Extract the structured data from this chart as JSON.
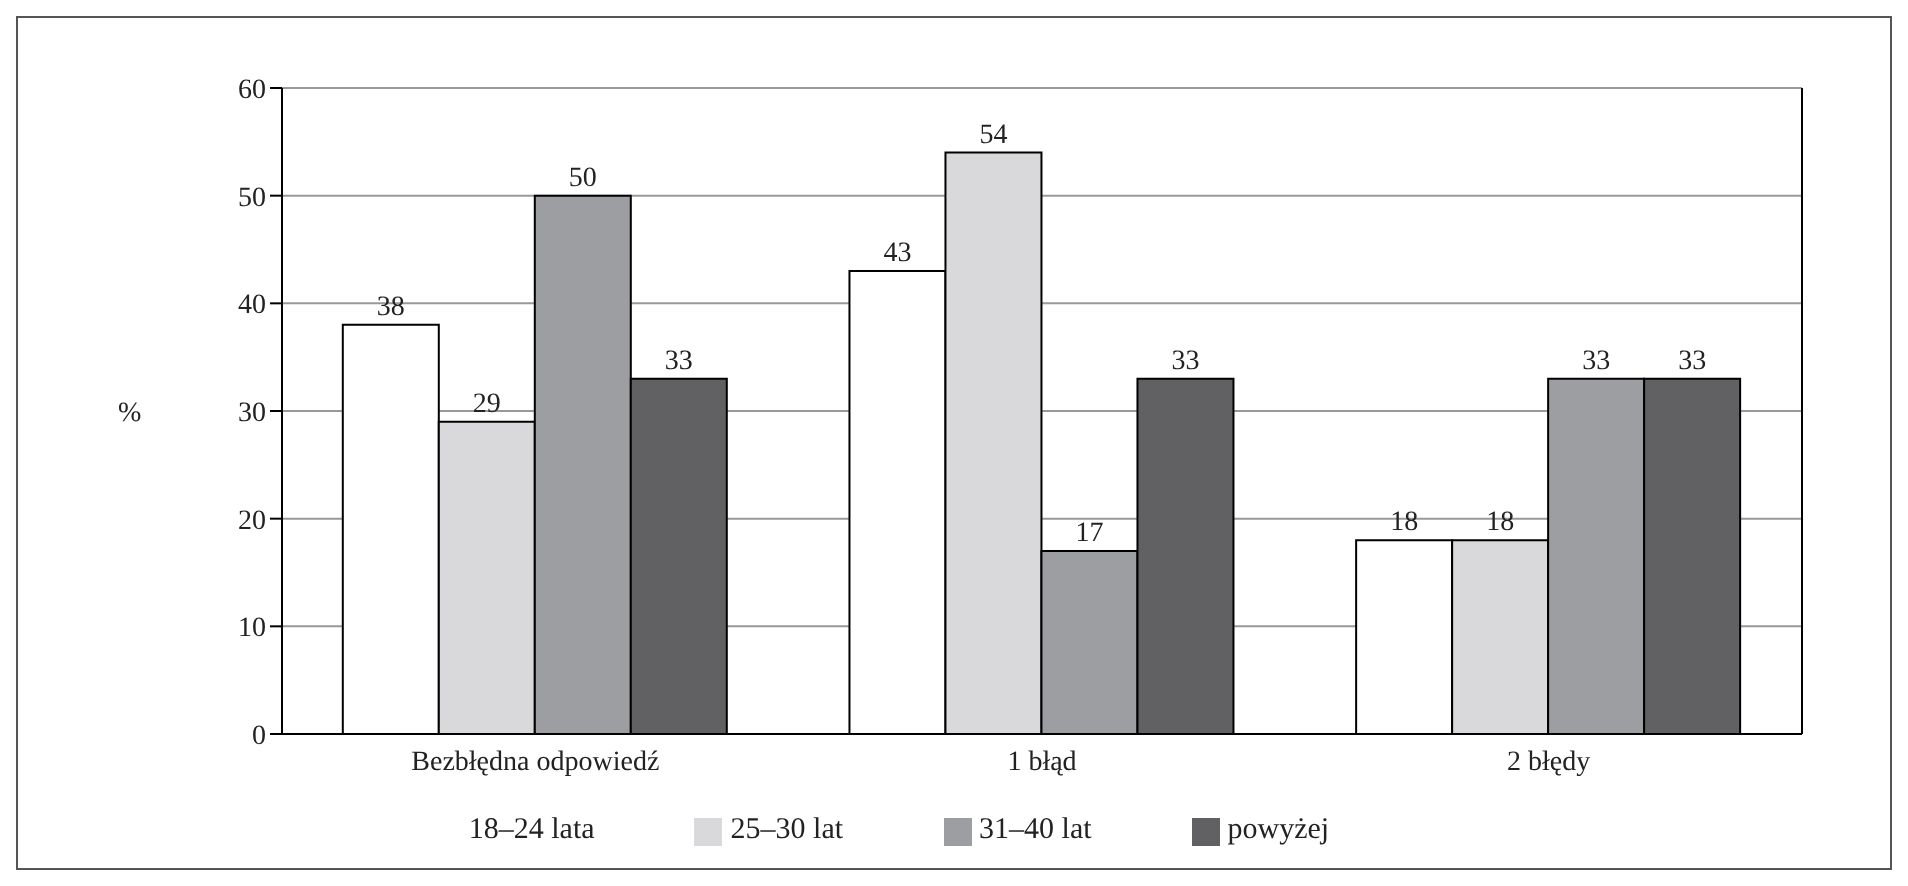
{
  "chart_data": {
    "type": "bar",
    "ylabel": "%",
    "categories": [
      "Bezbłędna odpowiedź",
      "1 błąd",
      "2 błędy"
    ],
    "series": [
      {
        "name": "18–24 lata",
        "color": "#ffffff",
        "values": [
          38,
          43,
          18
        ]
      },
      {
        "name": "25–30 lat",
        "color": "#d9d9db",
        "values": [
          29,
          54,
          18
        ]
      },
      {
        "name": "31–40 lat",
        "color": "#9d9ea1",
        "values": [
          50,
          17,
          33
        ]
      },
      {
        "name": "powyżej",
        "color": "#616163",
        "values": [
          33,
          33,
          33
        ]
      }
    ],
    "ylim": [
      0,
      60
    ],
    "yticks": [
      0,
      10,
      20,
      30,
      40,
      50,
      60
    ],
    "grid": "y",
    "legend": "bottom",
    "data_labels": true
  }
}
